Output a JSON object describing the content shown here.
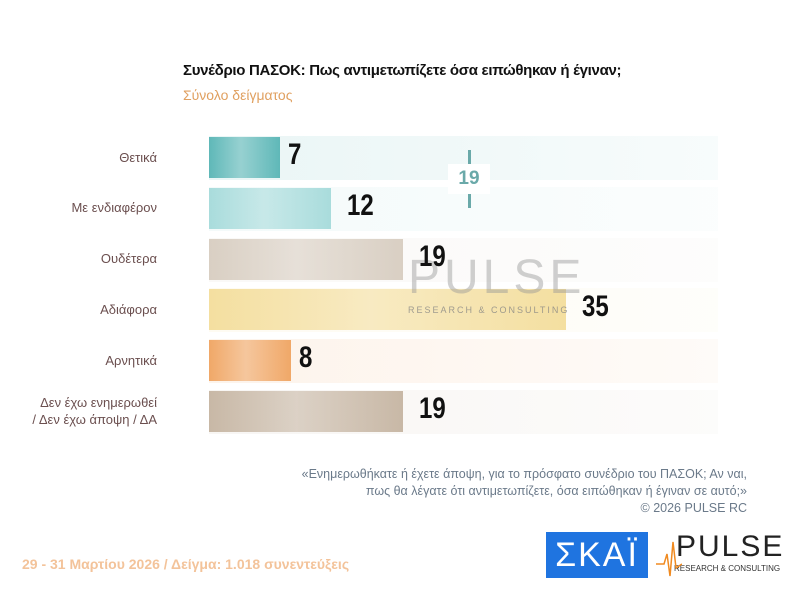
{
  "chart_data": {
    "type": "bar",
    "orientation": "horizontal",
    "title": "Συνέδριο ΠΑΣΟΚ: Πως αντιμετωπίζετε όσα ειπώθηκαν ή έγιναν;",
    "subtitle": "Σύνολο δείγματος",
    "categories": [
      "Θετικά",
      "Με ενδιαφέρον",
      "Ουδέτερα",
      "Αδιάφορα",
      "Αρνητικά",
      "Δεν έχω ενημερωθεί / Δεν έχω άποψη / ΔΑ"
    ],
    "category_lines": [
      [
        "Θετικά"
      ],
      [
        "Με ενδιαφέρον"
      ],
      [
        "Ουδέτερα"
      ],
      [
        "Αδιάφορα"
      ],
      [
        "Αρνητικά"
      ],
      [
        "Δεν έχω ενημερωθεί",
        "/ Δεν έχω άποψη / ΔΑ"
      ]
    ],
    "values": [
      7,
      12,
      19,
      35,
      8,
      19
    ],
    "value_labels": [
      "7",
      "12",
      "19",
      "35",
      "8",
      "19"
    ],
    "colors": [
      "#5fb8b8",
      "#a9dcdc",
      "#d9cfc3",
      "#f4dfa0",
      "#f0a868",
      "#c8b8a6"
    ],
    "annotation": "19",
    "xlim": [
      0,
      50
    ],
    "grid": false,
    "legend": "none"
  },
  "watermark": {
    "main": "PULSE",
    "sub": "RESEARCH & CONSULTING"
  },
  "note": {
    "line1": "«Ενημερωθήκατε ή έχετε άποψη, για το πρόσφατο συνέδριο του ΠΑΣΟΚ; Αν ναι,",
    "line2": "πως θα λέγατε ότι αντιμετωπίζετε, όσα ειπώθηκαν ή έγιναν σε αυτό;»",
    "copyright": "©  2026  PULSE RC"
  },
  "footer": "29 - 31  Μαρτίου 2026  /  Δείγμα:  1.018 συνεντεύξεις",
  "logos": {
    "skai": "ΣΚΑΪ",
    "pulse": "PULSE",
    "pulse_sub": "RESEARCH & CONSULTING"
  }
}
